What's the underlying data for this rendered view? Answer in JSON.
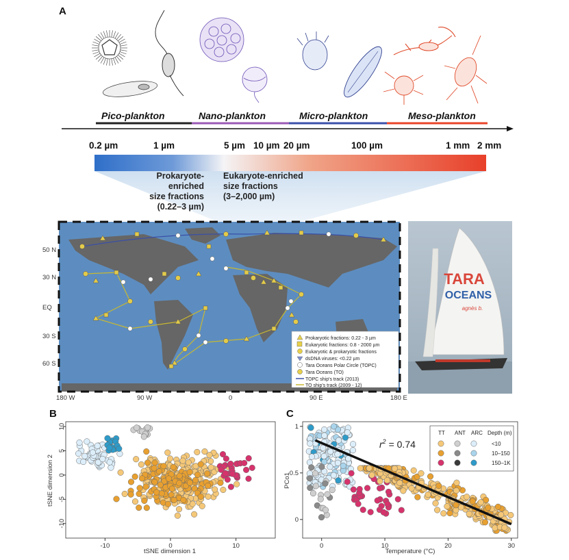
{
  "panel_a": {
    "letter": "A",
    "plankton_classes": [
      {
        "label": "Pico-plankton",
        "color": "#222222"
      },
      {
        "label": "Nano-plankton",
        "color": "#9b59b6"
      },
      {
        "label": "Micro-plankton",
        "color": "#3a4fa8"
      },
      {
        "label": "Meso-plankton",
        "color": "#e8442a"
      }
    ],
    "size_ticks": [
      "0.2 µm",
      "1 µm",
      "5 µm",
      "10 µm",
      "20 µm",
      "100 µm",
      "1 mm",
      "2 mm"
    ],
    "prokaryote_label": [
      "Prokaryote-enriched",
      "size fractions",
      "(0.22–3 µm)"
    ],
    "eukaryote_label": [
      "Eukaryote-enriched",
      "size fractions",
      "(3–2,000 µm)"
    ],
    "map": {
      "lat_labels": [
        "50 N",
        "30 N",
        "EQ",
        "30 S",
        "60 S"
      ],
      "lon_labels": [
        "180 W",
        "90 W",
        "0",
        "90 E",
        "180 E"
      ],
      "legend": [
        "Prokaryotic fractions: 0.22 - 3 µm",
        "Eukaryotic fractions: 0.8 - 2000 µm",
        "Eukaryotic & prokaryotic fractions",
        "dsDNA viruses: <0.22 µm",
        "Tara Oceans Polar Circle (TOPC)",
        "Tara Oceans (TO)",
        "TOPC ship's track (2013)",
        "TO ship's track (2009 - 12)"
      ]
    },
    "boat_sail_text": [
      "TARA",
      "OCEANS",
      "agnès b."
    ]
  },
  "panel_b": {
    "letter": "B",
    "xlabel": "tSNE dimension 1",
    "ylabel": "tSNE dimension 2",
    "xticks": [
      "-10",
      "0",
      "10"
    ],
    "yticks": [
      "10",
      "5",
      "0",
      "-5",
      "-10"
    ]
  },
  "panel_c": {
    "letter": "C",
    "xlabel": "Temperature (°C)",
    "ylabel": "PCo1",
    "xticks": [
      "0",
      "10",
      "20",
      "30"
    ],
    "yticks": [
      "1",
      "0.5",
      "0"
    ],
    "r2_label": "r",
    "r2_sup": "2",
    "r2_value": " = 0.74",
    "legend": {
      "headers": [
        "TT",
        "ANT",
        "ARC",
        "Depth (m)"
      ],
      "rows": [
        "<10",
        "10–150",
        "150–1K"
      ]
    }
  },
  "colors": {
    "tt": [
      "#f5c878",
      "#e8a030",
      "#d6336c"
    ],
    "ant": [
      "#cfcfcf",
      "#8a8a8a",
      "#3a3a3a"
    ],
    "arc": [
      "#dceefa",
      "#a9d4ec",
      "#2e9bc9"
    ],
    "ocean": "#5f8fc2",
    "land": "#666666"
  },
  "chart_data": [
    {
      "type": "scatter",
      "title": "B",
      "xlabel": "tSNE dimension 1",
      "ylabel": "tSNE dimension 2",
      "xlim": [
        -16,
        16
      ],
      "ylim": [
        -13,
        11
      ],
      "series": [
        {
          "name": "TT <10 m",
          "cluster": {
            "cx": 2,
            "cy": -1,
            "sx": 6,
            "sy": 4.5,
            "n": 230
          }
        },
        {
          "name": "TT 10-150 m",
          "cluster": {
            "cx": 0,
            "cy": -2,
            "sx": 6,
            "sy": 4,
            "n": 110
          }
        },
        {
          "name": "TT 150-1K m",
          "cluster": {
            "cx": 10,
            "cy": 1,
            "sx": 2.5,
            "sy": 2.5,
            "n": 30
          }
        },
        {
          "name": "ARC <10 m",
          "cluster": {
            "cx": -11,
            "cy": 4,
            "sx": 2.5,
            "sy": 2.5,
            "n": 60
          }
        },
        {
          "name": "ARC 150-1K m",
          "cluster": {
            "cx": -9,
            "cy": 6,
            "sx": 1.5,
            "sy": 1.5,
            "n": 15
          }
        },
        {
          "name": "ANT",
          "cluster": {
            "cx": -4,
            "cy": 9,
            "sx": 1.2,
            "sy": 1.0,
            "n": 12
          }
        }
      ]
    },
    {
      "type": "scatter",
      "title": "C",
      "xlabel": "Temperature (°C)",
      "ylabel": "PCo1",
      "xlim": [
        -3,
        31
      ],
      "ylim": [
        -0.2,
        1.05
      ],
      "annotations": [
        "r² = 0.74"
      ],
      "trend_line": {
        "x": [
          -1,
          30
        ],
        "y": [
          0.85,
          -0.05
        ]
      },
      "series": [
        {
          "name": "ARC",
          "temperature_range": [
            -2,
            5
          ],
          "pco1_range": [
            0.35,
            1.0
          ],
          "n": 150
        },
        {
          "name": "ANT",
          "temperature_range": [
            -2,
            2
          ],
          "pco1_range": [
            0.0,
            0.6
          ],
          "n": 20
        },
        {
          "name": "TT 150-1K m",
          "temperature_range": [
            4,
            13
          ],
          "pco1_range": [
            0.05,
            0.5
          ],
          "n": 40
        },
        {
          "name": "TT",
          "temperature_range": [
            6,
            30
          ],
          "pco1_range": [
            -0.12,
            0.55
          ],
          "n": 330
        }
      ]
    }
  ]
}
